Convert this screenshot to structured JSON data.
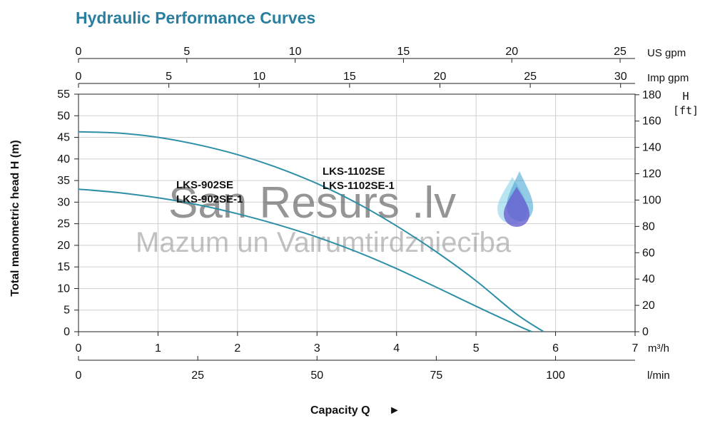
{
  "colors": {
    "title": "#2a7fa0",
    "curve": "#2e8fa6",
    "grid": "#cfcfcf",
    "axis": "#222222"
  },
  "chart_data": {
    "type": "line",
    "title": "Hydraulic Performance Curves",
    "xlabel": "Capacity Q",
    "xlabel_arrow": "►",
    "ylabel": "Total manometric head H (m)",
    "ylabel_right": {
      "line1": "H",
      "line2": "[ft]"
    },
    "xlim": [
      0,
      7
    ],
    "ylim": [
      0,
      55
    ],
    "x_unit": "m³/h",
    "grid": true,
    "x_ticks": [
      "0",
      "1",
      "2",
      "3",
      "4",
      "5",
      "6",
      "7"
    ],
    "y_ticks": [
      "0",
      "5",
      "10",
      "15",
      "20",
      "25",
      "30",
      "35",
      "40",
      "45",
      "50",
      "55"
    ],
    "y2_ticks": [
      "0",
      "20",
      "40",
      "60",
      "80",
      "100",
      "120",
      "140",
      "160",
      "180"
    ],
    "extra_axes": [
      {
        "unit": "US gpm",
        "ticks": [
          "0",
          "5",
          "10",
          "15",
          "20",
          "25"
        ],
        "values": [
          0,
          5,
          10,
          15,
          20,
          25
        ],
        "max": 25.69
      },
      {
        "unit": "Imp gpm",
        "ticks": [
          "0",
          "5",
          "10",
          "15",
          "20",
          "25",
          "30"
        ],
        "values": [
          0,
          5,
          10,
          15,
          20,
          25,
          30
        ],
        "max": 30.8
      },
      {
        "unit": "l/min",
        "ticks": [
          "0",
          "25",
          "50",
          "75",
          "100"
        ],
        "values": [
          0,
          25,
          50,
          75,
          100
        ],
        "max": 116.67
      }
    ],
    "series": [
      {
        "name_lines": [
          "LKS-1102SE",
          "LKS-1102SE-1"
        ],
        "x": [
          0,
          0.5,
          1,
          1.5,
          2,
          2.5,
          3,
          3.5,
          4,
          4.5,
          5,
          5.5,
          5.85
        ],
        "y": [
          46.3,
          46.0,
          45.0,
          43.3,
          41.0,
          38.0,
          34.3,
          29.8,
          24.5,
          18.5,
          11.8,
          4.2,
          0
        ]
      },
      {
        "name_lines": [
          "LKS-902SE",
          "LKS-902SE-1"
        ],
        "x": [
          0,
          0.5,
          1,
          1.5,
          2,
          2.5,
          3,
          3.5,
          4,
          4.5,
          5,
          5.5,
          5.7
        ],
        "y": [
          33.0,
          32.2,
          31.0,
          29.4,
          27.3,
          24.8,
          21.9,
          18.5,
          14.6,
          10.3,
          5.9,
          1.6,
          0
        ]
      }
    ]
  },
  "watermark": {
    "line1": "San Resurs .lv",
    "line2": "Mazum un Vairumtirdzniecība",
    "drop_colors": [
      "#7fd0e8",
      "#3a9fd0",
      "#6a5fcf"
    ]
  }
}
